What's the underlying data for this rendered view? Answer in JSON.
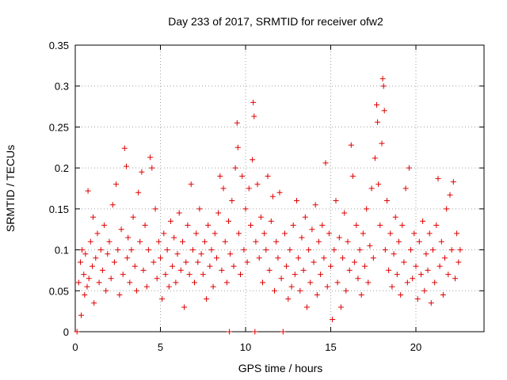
{
  "chart_data": {
    "type": "scatter",
    "title": "Day 233 of 2017, SRMTID for receiver ofw2",
    "xlabel": "GPS time / hours",
    "ylabel": "SRMTID / TECUs",
    "xlim": [
      0,
      24
    ],
    "ylim": [
      0,
      0.35
    ],
    "x_ticks": [
      0,
      5,
      10,
      15,
      20
    ],
    "x_tick_labels": [
      "0",
      "5",
      "10",
      "15",
      "20"
    ],
    "y_ticks": [
      0,
      0.05,
      0.1,
      0.15,
      0.2,
      0.25,
      0.3,
      0.35
    ],
    "y_tick_labels": [
      "0",
      "0.05",
      "0.1",
      "0.15",
      "0.2",
      "0.25",
      "0.3",
      "0.35"
    ],
    "grid": true,
    "marker": "+",
    "color": "#e00000",
    "series": [
      {
        "name": "SRMTID",
        "points": [
          [
            0.1,
            0.0
          ],
          [
            0.2,
            0.06
          ],
          [
            0.3,
            0.085
          ],
          [
            0.35,
            0.02
          ],
          [
            0.4,
            0.1
          ],
          [
            0.5,
            0.07
          ],
          [
            0.55,
            0.045
          ],
          [
            0.6,
            0.095
          ],
          [
            0.7,
            0.055
          ],
          [
            0.75,
            0.172
          ],
          [
            0.8,
            0.065
          ],
          [
            0.9,
            0.11
          ],
          [
            1.0,
            0.08
          ],
          [
            1.05,
            0.14
          ],
          [
            1.1,
            0.035
          ],
          [
            1.2,
            0.09
          ],
          [
            1.3,
            0.12
          ],
          [
            1.4,
            0.06
          ],
          [
            1.5,
            0.1
          ],
          [
            1.6,
            0.075
          ],
          [
            1.7,
            0.13
          ],
          [
            1.8,
            0.05
          ],
          [
            1.9,
            0.095
          ],
          [
            2.0,
            0.11
          ],
          [
            2.1,
            0.065
          ],
          [
            2.2,
            0.155
          ],
          [
            2.3,
            0.085
          ],
          [
            2.4,
            0.18
          ],
          [
            2.5,
            0.1
          ],
          [
            2.6,
            0.045
          ],
          [
            2.7,
            0.125
          ],
          [
            2.8,
            0.07
          ],
          [
            2.9,
            0.224
          ],
          [
            3.0,
            0.202
          ],
          [
            3.05,
            0.09
          ],
          [
            3.1,
            0.115
          ],
          [
            3.2,
            0.06
          ],
          [
            3.3,
            0.1
          ],
          [
            3.4,
            0.14
          ],
          [
            3.5,
            0.08
          ],
          [
            3.6,
            0.05
          ],
          [
            3.7,
            0.17
          ],
          [
            3.8,
            0.11
          ],
          [
            3.9,
            0.195
          ],
          [
            4.0,
            0.075
          ],
          [
            4.1,
            0.13
          ],
          [
            4.2,
            0.055
          ],
          [
            4.3,
            0.1
          ],
          [
            4.4,
            0.213
          ],
          [
            4.5,
            0.2
          ],
          [
            4.6,
            0.085
          ],
          [
            4.7,
            0.15
          ],
          [
            4.8,
            0.065
          ],
          [
            4.9,
            0.11
          ],
          [
            5.0,
            0.09
          ],
          [
            5.1,
            0.04
          ],
          [
            5.2,
            0.12
          ],
          [
            5.3,
            0.07
          ],
          [
            5.4,
            0.1
          ],
          [
            5.5,
            0.055
          ],
          [
            5.6,
            0.135
          ],
          [
            5.7,
            0.08
          ],
          [
            5.8,
            0.115
          ],
          [
            5.9,
            0.06
          ],
          [
            6.0,
            0.095
          ],
          [
            6.1,
            0.145
          ],
          [
            6.2,
            0.075
          ],
          [
            6.3,
            0.11
          ],
          [
            6.4,
            0.03
          ],
          [
            6.5,
            0.085
          ],
          [
            6.6,
            0.13
          ],
          [
            6.7,
            0.07
          ],
          [
            6.8,
            0.18
          ],
          [
            6.9,
            0.1
          ],
          [
            7.0,
            0.06
          ],
          [
            7.1,
            0.12
          ],
          [
            7.2,
            0.085
          ],
          [
            7.3,
            0.15
          ],
          [
            7.4,
            0.095
          ],
          [
            7.5,
            0.07
          ],
          [
            7.6,
            0.11
          ],
          [
            7.7,
            0.04
          ],
          [
            7.8,
            0.13
          ],
          [
            7.9,
            0.08
          ],
          [
            8.0,
            0.1
          ],
          [
            8.1,
            0.055
          ],
          [
            8.2,
            0.12
          ],
          [
            8.3,
            0.09
          ],
          [
            8.4,
            0.145
          ],
          [
            8.5,
            0.19
          ],
          [
            8.6,
            0.075
          ],
          [
            8.7,
            0.175
          ],
          [
            8.8,
            0.11
          ],
          [
            8.9,
            0.06
          ],
          [
            9.0,
            0.135
          ],
          [
            9.05,
            0.0
          ],
          [
            9.1,
            0.095
          ],
          [
            9.2,
            0.16
          ],
          [
            9.3,
            0.08
          ],
          [
            9.4,
            0.2
          ],
          [
            9.5,
            0.255
          ],
          [
            9.55,
            0.225
          ],
          [
            9.6,
            0.12
          ],
          [
            9.7,
            0.07
          ],
          [
            9.8,
            0.19
          ],
          [
            9.9,
            0.1
          ],
          [
            10.0,
            0.15
          ],
          [
            10.1,
            0.085
          ],
          [
            10.2,
            0.175
          ],
          [
            10.3,
            0.13
          ],
          [
            10.4,
            0.21
          ],
          [
            10.45,
            0.28
          ],
          [
            10.5,
            0.263
          ],
          [
            10.55,
            0.0
          ],
          [
            10.6,
            0.11
          ],
          [
            10.7,
            0.18
          ],
          [
            10.8,
            0.09
          ],
          [
            10.9,
            0.14
          ],
          [
            11.0,
            0.06
          ],
          [
            11.1,
            0.12
          ],
          [
            11.2,
            0.1
          ],
          [
            11.3,
            0.19
          ],
          [
            11.4,
            0.075
          ],
          [
            11.5,
            0.135
          ],
          [
            11.6,
            0.165
          ],
          [
            11.7,
            0.05
          ],
          [
            11.8,
            0.11
          ],
          [
            11.9,
            0.09
          ],
          [
            12.0,
            0.17
          ],
          [
            12.1,
            0.065
          ],
          [
            12.2,
            0.0
          ],
          [
            12.3,
            0.12
          ],
          [
            12.4,
            0.08
          ],
          [
            12.5,
            0.04
          ],
          [
            12.6,
            0.1
          ],
          [
            12.7,
            0.055
          ],
          [
            12.8,
            0.13
          ],
          [
            12.9,
            0.07
          ],
          [
            13.0,
            0.16
          ],
          [
            13.1,
            0.09
          ],
          [
            13.2,
            0.05
          ],
          [
            13.3,
            0.115
          ],
          [
            13.4,
            0.075
          ],
          [
            13.5,
            0.14
          ],
          [
            13.6,
            0.03
          ],
          [
            13.7,
            0.1
          ],
          [
            13.8,
            0.06
          ],
          [
            13.9,
            0.125
          ],
          [
            14.0,
            0.085
          ],
          [
            14.1,
            0.155
          ],
          [
            14.2,
            0.045
          ],
          [
            14.3,
            0.11
          ],
          [
            14.4,
            0.07
          ],
          [
            14.5,
            0.13
          ],
          [
            14.6,
            0.09
          ],
          [
            14.7,
            0.206
          ],
          [
            14.8,
            0.055
          ],
          [
            14.9,
            0.12
          ],
          [
            15.0,
            0.08
          ],
          [
            15.1,
            0.015
          ],
          [
            15.2,
            0.1
          ],
          [
            15.3,
            0.16
          ],
          [
            15.4,
            0.06
          ],
          [
            15.5,
            0.115
          ],
          [
            15.6,
            0.03
          ],
          [
            15.7,
            0.09
          ],
          [
            15.8,
            0.145
          ],
          [
            15.9,
            0.05
          ],
          [
            16.0,
            0.11
          ],
          [
            16.1,
            0.075
          ],
          [
            16.2,
            0.228
          ],
          [
            16.3,
            0.19
          ],
          [
            16.4,
            0.085
          ],
          [
            16.5,
            0.13
          ],
          [
            16.6,
            0.065
          ],
          [
            16.7,
            0.1
          ],
          [
            16.8,
            0.045
          ],
          [
            16.9,
            0.12
          ],
          [
            17.0,
            0.08
          ],
          [
            17.1,
            0.15
          ],
          [
            17.2,
            0.06
          ],
          [
            17.3,
            0.105
          ],
          [
            17.4,
            0.175
          ],
          [
            17.5,
            0.09
          ],
          [
            17.6,
            0.212
          ],
          [
            17.7,
            0.277
          ],
          [
            17.75,
            0.256
          ],
          [
            17.8,
            0.18
          ],
          [
            17.9,
            0.13
          ],
          [
            18.0,
            0.23
          ],
          [
            18.05,
            0.309
          ],
          [
            18.1,
            0.3
          ],
          [
            18.15,
            0.27
          ],
          [
            18.2,
            0.1
          ],
          [
            18.3,
            0.16
          ],
          [
            18.4,
            0.075
          ],
          [
            18.5,
            0.12
          ],
          [
            18.6,
            0.055
          ],
          [
            18.7,
            0.095
          ],
          [
            18.8,
            0.14
          ],
          [
            18.9,
            0.07
          ],
          [
            19.0,
            0.11
          ],
          [
            19.1,
            0.045
          ],
          [
            19.2,
            0.13
          ],
          [
            19.3,
            0.085
          ],
          [
            19.4,
            0.175
          ],
          [
            19.5,
            0.06
          ],
          [
            19.6,
            0.2
          ],
          [
            19.7,
            0.1
          ],
          [
            19.8,
            0.065
          ],
          [
            19.9,
            0.12
          ],
          [
            20.0,
            0.08
          ],
          [
            20.1,
            0.04
          ],
          [
            20.2,
            0.11
          ],
          [
            20.3,
            0.07
          ],
          [
            20.4,
            0.135
          ],
          [
            20.5,
            0.05
          ],
          [
            20.6,
            0.095
          ],
          [
            20.7,
            0.075
          ],
          [
            20.8,
            0.12
          ],
          [
            20.9,
            0.035
          ],
          [
            21.0,
            0.1
          ],
          [
            21.1,
            0.06
          ],
          [
            21.2,
            0.13
          ],
          [
            21.3,
            0.187
          ],
          [
            21.4,
            0.08
          ],
          [
            21.5,
            0.11
          ],
          [
            21.6,
            0.045
          ],
          [
            21.7,
            0.09
          ],
          [
            21.8,
            0.15
          ],
          [
            21.9,
            0.07
          ],
          [
            22.0,
            0.167
          ],
          [
            22.1,
            0.1
          ],
          [
            22.2,
            0.183
          ],
          [
            22.3,
            0.065
          ],
          [
            22.4,
            0.12
          ],
          [
            22.5,
            0.085
          ],
          [
            22.6,
            0.1
          ]
        ]
      }
    ]
  }
}
